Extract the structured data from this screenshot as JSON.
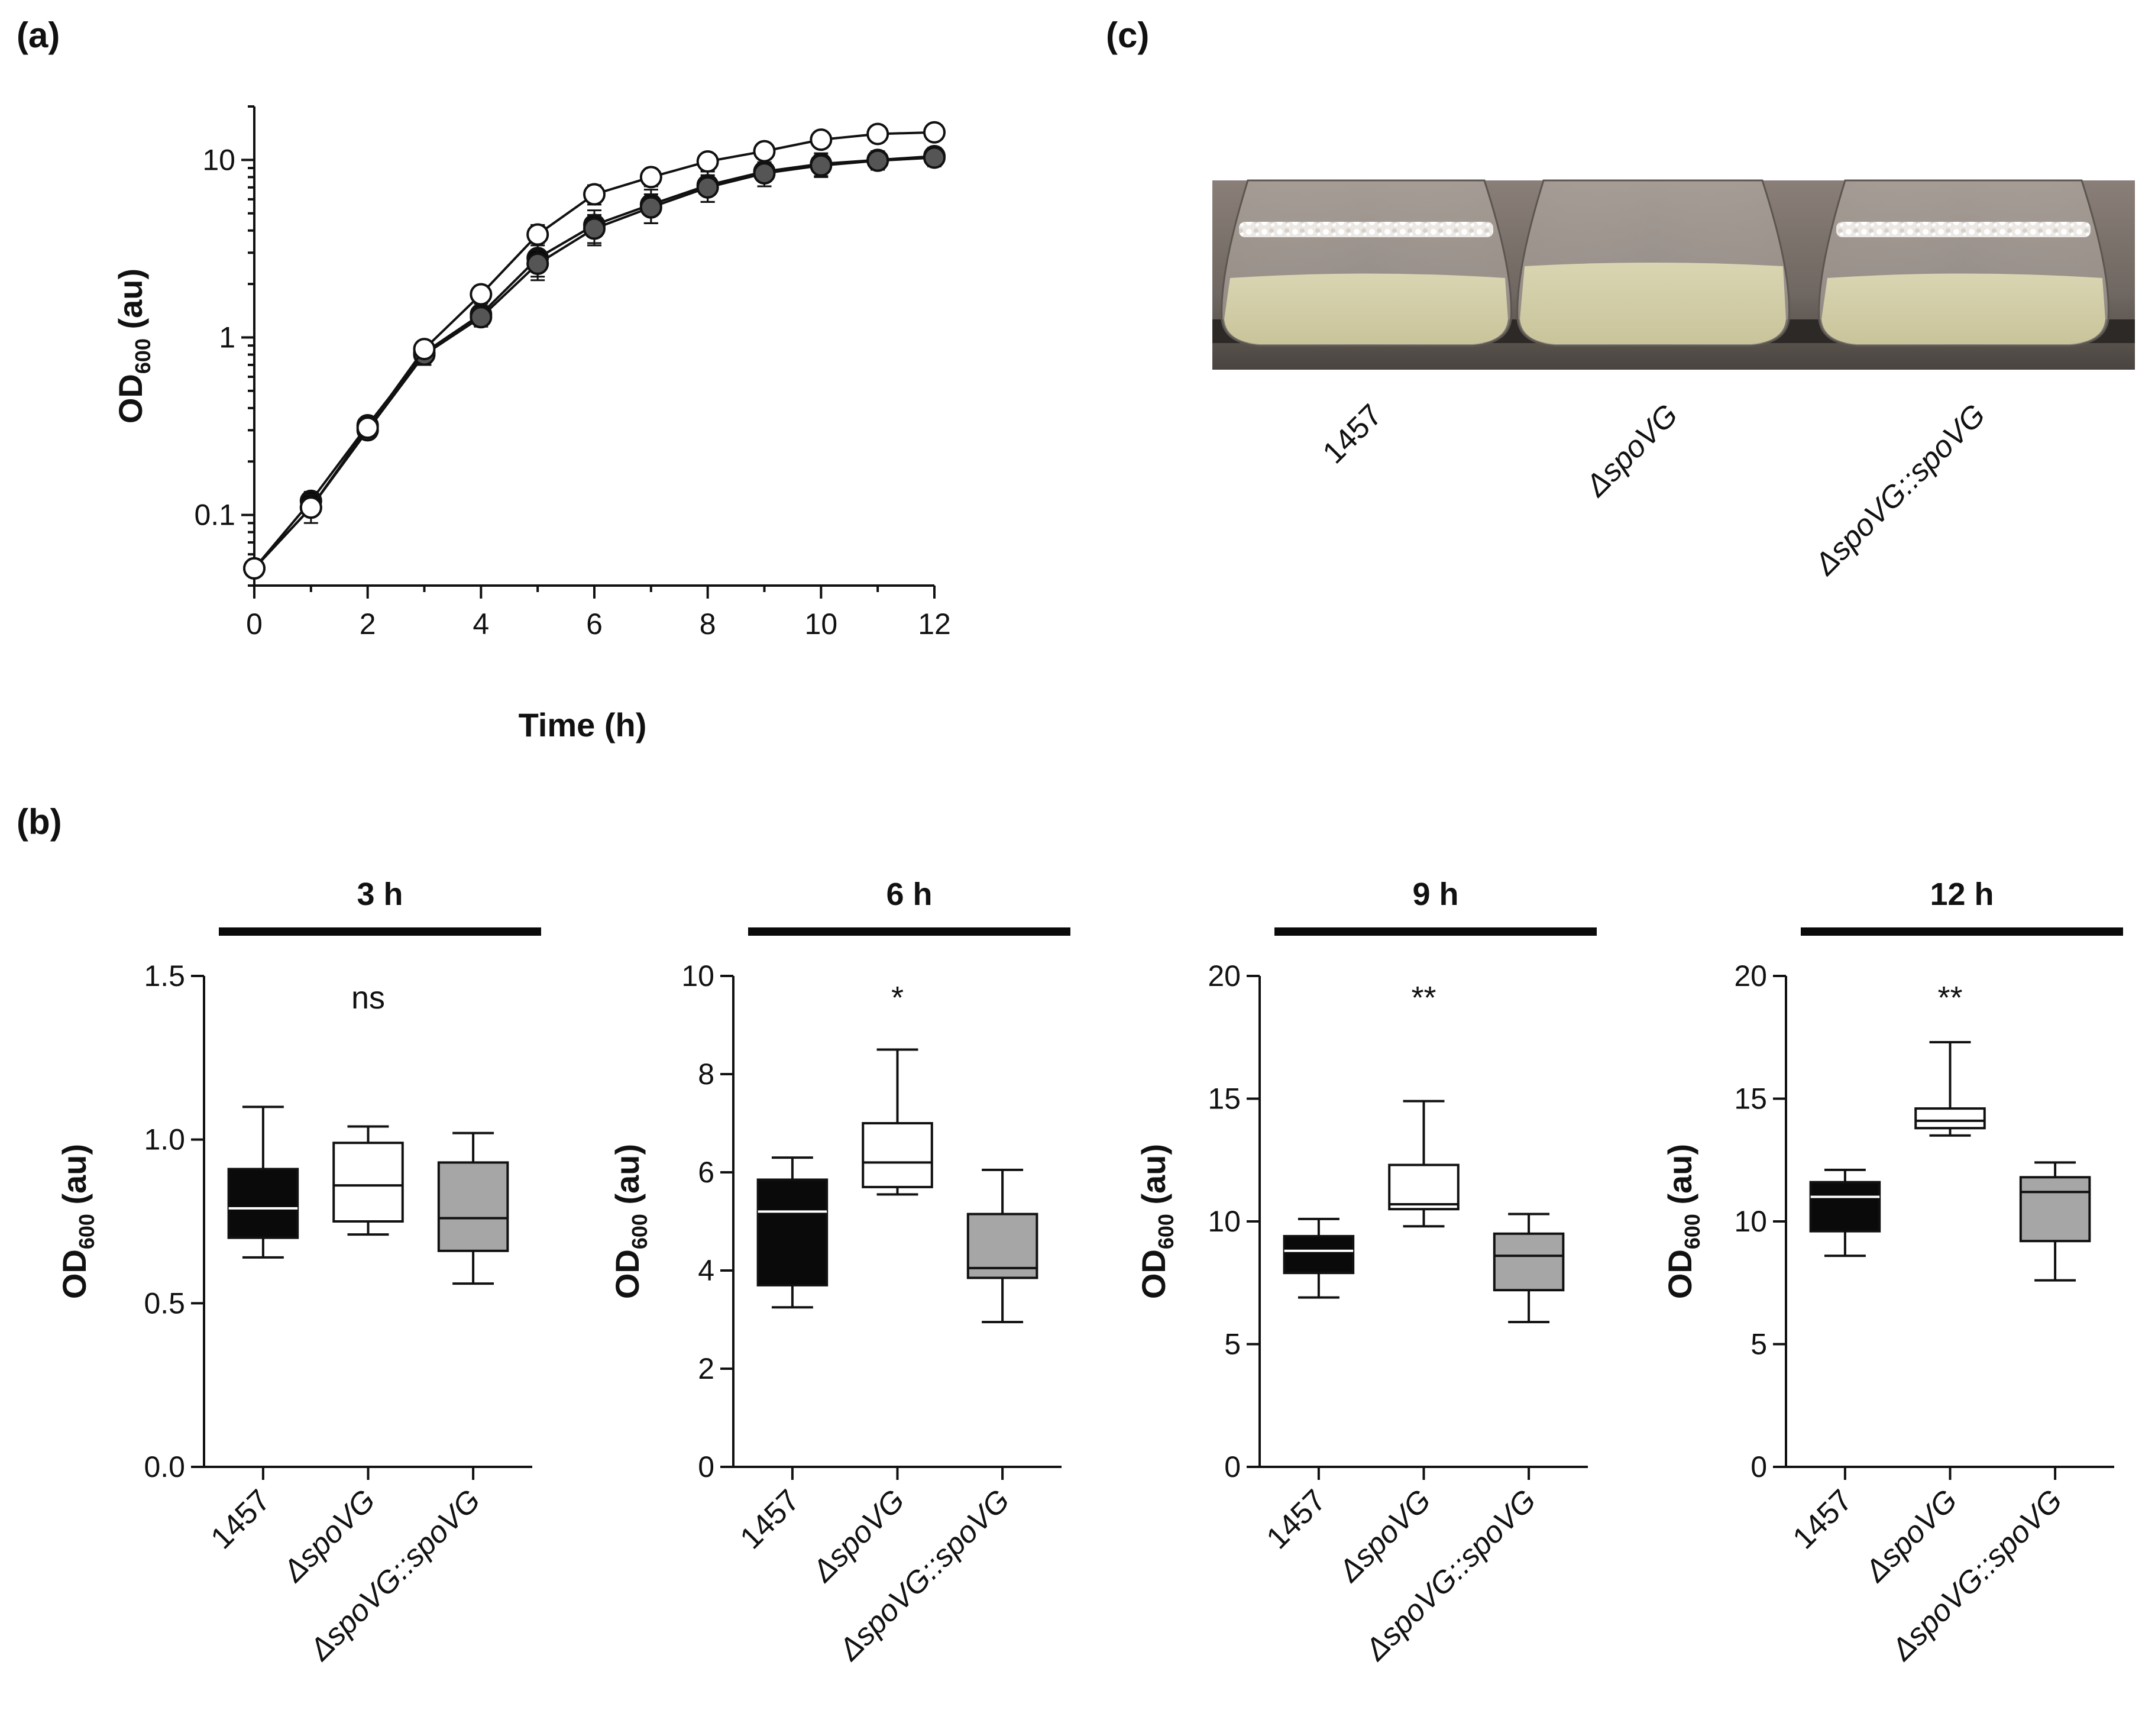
{
  "panels": {
    "a": "(a)",
    "b": "(b)",
    "c": "(c)"
  },
  "colors": {
    "black": "#0a0a0a",
    "white": "#ffffff",
    "gray": "#a6a6a6"
  },
  "chart_data": [
    {
      "id": "a",
      "type": "line",
      "yscale": "log",
      "xlabel": "Time (h)",
      "ylabel_main": "OD",
      "ylabel_sub": "600",
      "ylabel_suffix": " (au)",
      "xlim": [
        0,
        12
      ],
      "ylim": [
        0.04,
        20
      ],
      "xticks": [
        "0",
        "2",
        "4",
        "6",
        "8",
        "10",
        "12"
      ],
      "yticks": [
        {
          "label": "0.1",
          "value": 0.1
        },
        {
          "label": "1",
          "value": 1
        },
        {
          "label": "10",
          "value": 10
        }
      ],
      "x": [
        0,
        1,
        2,
        3,
        4,
        5,
        6,
        7,
        8,
        9,
        10,
        11,
        12
      ],
      "series": [
        {
          "name": "1457",
          "marker": "filled-black",
          "values": [
            0.05,
            0.12,
            0.32,
            0.82,
            1.35,
            2.8,
            4.3,
            5.6,
            7.2,
            8.6,
            9.5,
            10.0,
            10.5
          ],
          "err": [
            0.003,
            0.015,
            0.03,
            0.1,
            0.15,
            0.6,
            0.9,
            1.2,
            1.4,
            1.5,
            1.4,
            1.2,
            1.2
          ]
        },
        {
          "name": "ΔspoVG::spoVG",
          "marker": "filled-gray",
          "values": [
            0.05,
            0.11,
            0.3,
            0.8,
            1.3,
            2.6,
            4.1,
            5.4,
            7.0,
            8.4,
            9.3,
            9.9,
            10.3
          ],
          "err": [
            0.003,
            0.02,
            0.03,
            0.1,
            0.15,
            0.5,
            0.8,
            1.0,
            1.2,
            1.3,
            1.3,
            1.1,
            1.1
          ]
        },
        {
          "name": "ΔspoVG",
          "marker": "open",
          "values": [
            0.05,
            0.11,
            0.31,
            0.86,
            1.75,
            3.8,
            6.4,
            8.0,
            9.8,
            11.2,
            13.0,
            14.0,
            14.3
          ],
          "err": [
            0.003,
            0.01,
            0.03,
            0.08,
            0.2,
            0.5,
            0.8,
            0.9,
            1.0,
            1.0,
            0.9,
            0.8,
            0.8
          ]
        }
      ]
    },
    {
      "id": "b1",
      "type": "box",
      "title": "3 h",
      "significance": "ns",
      "ylabel_main": "OD",
      "ylabel_sub": "600",
      "ylabel_suffix": " (au)",
      "ylim": [
        0,
        1.5
      ],
      "yticks": [
        {
          "label": "0.0",
          "value": 0
        },
        {
          "label": "0.5",
          "value": 0.5
        },
        {
          "label": "1.0",
          "value": 1.0
        },
        {
          "label": "1.5",
          "value": 1.5
        }
      ],
      "categories": [
        "1457",
        "ΔspoVG",
        "ΔspoVG::spoVG"
      ],
      "boxes": [
        {
          "min": 0.64,
          "q1": 0.7,
          "median": 0.79,
          "q3": 0.91,
          "max": 1.1,
          "fill": "black"
        },
        {
          "min": 0.71,
          "q1": 0.75,
          "median": 0.86,
          "q3": 0.99,
          "max": 1.04,
          "fill": "white"
        },
        {
          "min": 0.56,
          "q1": 0.66,
          "median": 0.76,
          "q3": 0.93,
          "max": 1.02,
          "fill": "gray"
        }
      ]
    },
    {
      "id": "b2",
      "type": "box",
      "title": "6 h",
      "significance": "*",
      "ylabel_main": "OD",
      "ylabel_sub": "600",
      "ylabel_suffix": " (au)",
      "ylim": [
        0,
        10
      ],
      "yticks": [
        {
          "label": "0",
          "value": 0
        },
        {
          "label": "2",
          "value": 2
        },
        {
          "label": "4",
          "value": 4
        },
        {
          "label": "6",
          "value": 6
        },
        {
          "label": "8",
          "value": 8
        },
        {
          "label": "10",
          "value": 10
        }
      ],
      "categories": [
        "1457",
        "ΔspoVG",
        "ΔspoVG::spoVG"
      ],
      "boxes": [
        {
          "min": 3.25,
          "q1": 3.7,
          "median": 5.2,
          "q3": 5.85,
          "max": 6.3,
          "fill": "black"
        },
        {
          "min": 5.55,
          "q1": 5.7,
          "median": 6.2,
          "q3": 7.0,
          "max": 8.5,
          "fill": "white"
        },
        {
          "min": 2.95,
          "q1": 3.85,
          "median": 4.05,
          "q3": 5.15,
          "max": 6.05,
          "fill": "gray"
        }
      ]
    },
    {
      "id": "b3",
      "type": "box",
      "title": "9 h",
      "significance": "**",
      "ylabel_main": "OD",
      "ylabel_sub": "600",
      "ylabel_suffix": " (au)",
      "ylim": [
        0,
        20
      ],
      "yticks": [
        {
          "label": "0",
          "value": 0
        },
        {
          "label": "5",
          "value": 5
        },
        {
          "label": "10",
          "value": 10
        },
        {
          "label": "15",
          "value": 15
        },
        {
          "label": "20",
          "value": 20
        }
      ],
      "categories": [
        "1457",
        "ΔspoVG",
        "ΔspoVG::spoVG"
      ],
      "boxes": [
        {
          "min": 6.9,
          "q1": 7.9,
          "median": 8.8,
          "q3": 9.4,
          "max": 10.1,
          "fill": "black"
        },
        {
          "min": 9.8,
          "q1": 10.5,
          "median": 10.7,
          "q3": 12.3,
          "max": 14.9,
          "fill": "white"
        },
        {
          "min": 5.9,
          "q1": 7.2,
          "median": 8.6,
          "q3": 9.5,
          "max": 10.3,
          "fill": "gray"
        }
      ]
    },
    {
      "id": "b4",
      "type": "box",
      "title": "12 h",
      "significance": "**",
      "ylabel_main": "OD",
      "ylabel_sub": "600",
      "ylabel_suffix": " (au)",
      "ylim": [
        0,
        20
      ],
      "yticks": [
        {
          "label": "0",
          "value": 0
        },
        {
          "label": "5",
          "value": 5
        },
        {
          "label": "10",
          "value": 10
        },
        {
          "label": "15",
          "value": 15
        },
        {
          "label": "20",
          "value": 20
        }
      ],
      "categories": [
        "1457",
        "ΔspoVG",
        "ΔspoVG::spoVG"
      ],
      "boxes": [
        {
          "min": 8.6,
          "q1": 9.6,
          "median": 11.0,
          "q3": 11.6,
          "max": 12.1,
          "fill": "black"
        },
        {
          "min": 13.5,
          "q1": 13.8,
          "median": 14.1,
          "q3": 14.6,
          "max": 17.3,
          "fill": "white"
        },
        {
          "min": 7.6,
          "q1": 9.2,
          "median": 11.2,
          "q3": 11.8,
          "max": 12.4,
          "fill": "gray"
        }
      ]
    }
  ],
  "photo": {
    "flask_labels": [
      "1457",
      "ΔspoVG",
      "ΔspoVG::spoVG"
    ]
  }
}
